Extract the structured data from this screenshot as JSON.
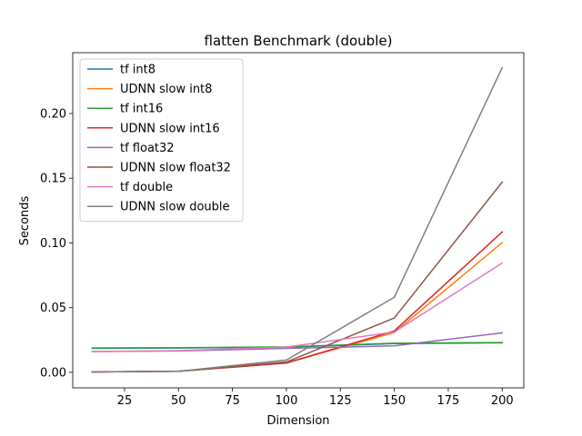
{
  "chart_data": {
    "type": "line",
    "title": "flatten Benchmark (double)",
    "xlabel": "Dimension",
    "ylabel": "Seconds",
    "xlim": [
      1,
      210
    ],
    "ylim": [
      -0.012,
      0.247
    ],
    "xticks": [
      25,
      50,
      75,
      100,
      125,
      150,
      175,
      200
    ],
    "yticks": [
      0.0,
      0.05,
      0.1,
      0.15,
      0.2
    ],
    "xtick_labels": [
      "25",
      "50",
      "75",
      "100",
      "125",
      "150",
      "175",
      "200"
    ],
    "ytick_labels": [
      "0.00",
      "0.05",
      "0.10",
      "0.15",
      "0.20"
    ],
    "legend_position": "upper left",
    "grid": false,
    "x": [
      10,
      50,
      100,
      150,
      200
    ],
    "series": [
      {
        "name": "tf int8",
        "color": "#1f77b4",
        "values": [
          0.0185,
          0.0188,
          0.0195,
          0.0222,
          0.0228
        ]
      },
      {
        "name": "UDNN slow int8",
        "color": "#ff7f0e",
        "values": [
          0.0003,
          0.0008,
          0.0072,
          0.0308,
          0.1003
        ]
      },
      {
        "name": "tf int16",
        "color": "#2ca02c",
        "values": [
          0.0188,
          0.019,
          0.0197,
          0.0225,
          0.023
        ]
      },
      {
        "name": "UDNN slow int16",
        "color": "#d62728",
        "values": [
          0.0003,
          0.0008,
          0.0072,
          0.032,
          0.1085
        ]
      },
      {
        "name": "tf float32",
        "color": "#9467bd",
        "values": [
          0.016,
          0.0165,
          0.0185,
          0.0205,
          0.0305
        ]
      },
      {
        "name": "UDNN slow float32",
        "color": "#8c564b",
        "values": [
          0.0003,
          0.0008,
          0.008,
          0.042,
          0.147
        ]
      },
      {
        "name": "tf double",
        "color": "#e377c2",
        "values": [
          0.016,
          0.0168,
          0.0195,
          0.0312,
          0.0845
        ]
      },
      {
        "name": "UDNN slow double",
        "color": "#7f7f7f",
        "values": [
          0.0003,
          0.0008,
          0.0095,
          0.058,
          0.2355
        ]
      }
    ]
  }
}
